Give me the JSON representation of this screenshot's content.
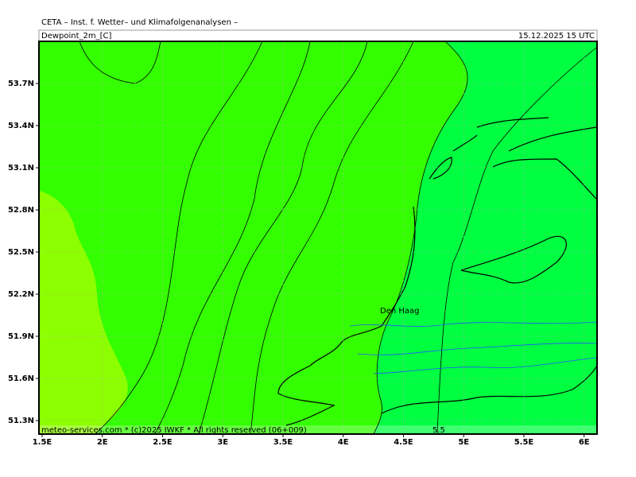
{
  "header": {
    "source": "CETA – Inst. f. Wetter– und Klimafolgenanalysen –",
    "parameter": "Dewpoint_2m_[C]",
    "datetime": "15.12.2025  15 UTC"
  },
  "map": {
    "lat_labels": [
      "53.7N",
      "53.4N",
      "53.1N",
      "52.8N",
      "52.5N",
      "52.2N",
      "51.9N",
      "51.6N",
      "51.3N"
    ],
    "lon_labels": [
      "1.5E",
      "2E",
      "2.5E",
      "3E",
      "3.5E",
      "4E",
      "4.5E",
      "5E",
      "5.5E",
      "6E"
    ],
    "places": [
      {
        "label": "Den Haag"
      }
    ],
    "contour_labels": [
      "5.5"
    ],
    "footer": "meteo-services.com * (c)2025 IWKF * All rights reserved (06+009)"
  }
}
